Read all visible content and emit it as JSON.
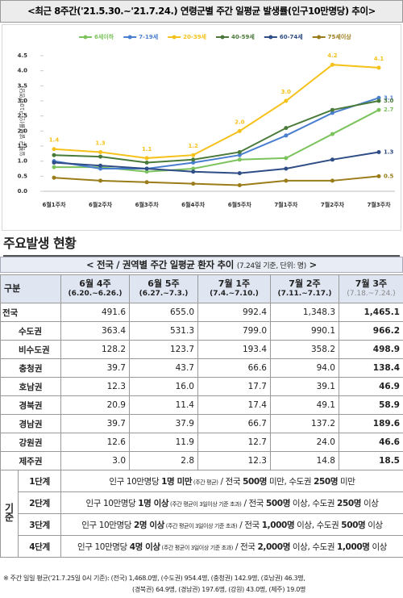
{
  "chart_data": {
    "type": "line",
    "title": "<최근 8주간('21.5.30.~'21.7.24.) 연령군별 주간 일평균 발생률(인구10만명당) 추이>",
    "y_label": "일평균 발생률(인구10만명당)",
    "categories": [
      "6월1주차",
      "6월2주차",
      "6월3주차",
      "6월4주차",
      "6월5주차",
      "7월1주차",
      "7월2주차",
      "7월3주차"
    ],
    "series": [
      {
        "name": "6세이하",
        "color": "#7cc35e",
        "values": [
          0.8,
          0.8,
          0.65,
          0.75,
          1.05,
          1.1,
          1.9,
          2.7
        ],
        "value_labels": [
          null,
          null,
          null,
          null,
          null,
          null,
          null,
          "2.7"
        ]
      },
      {
        "name": "7-19세",
        "color": "#4a7fd0",
        "values": [
          1.0,
          0.75,
          0.75,
          0.95,
          1.2,
          1.85,
          2.6,
          3.1
        ],
        "value_labels": [
          null,
          null,
          null,
          null,
          null,
          null,
          null,
          "3.1"
        ]
      },
      {
        "name": "20-39세",
        "color": "#f5c21b",
        "values": [
          1.4,
          1.3,
          1.1,
          1.2,
          2.0,
          3.0,
          4.2,
          4.1
        ],
        "value_labels": [
          "1.4",
          "1.3",
          "1.1",
          "1.2",
          "2.0",
          "3.0",
          "4.2",
          "4.1"
        ]
      },
      {
        "name": "40-59세",
        "color": "#4a7a3a",
        "values": [
          1.2,
          1.15,
          0.95,
          1.05,
          1.3,
          2.1,
          2.7,
          3.0
        ],
        "value_labels": [
          null,
          null,
          null,
          null,
          null,
          null,
          null,
          "3.0"
        ]
      },
      {
        "name": "60-74세",
        "color": "#2f4d86",
        "values": [
          0.95,
          0.85,
          0.75,
          0.65,
          0.6,
          0.75,
          1.05,
          1.3
        ],
        "value_labels": [
          null,
          null,
          null,
          null,
          null,
          null,
          null,
          "1.3"
        ]
      },
      {
        "name": "75세이상",
        "color": "#9a7c1a",
        "values": [
          0.45,
          0.35,
          0.3,
          0.25,
          0.2,
          0.35,
          0.35,
          0.5
        ],
        "value_labels": [
          null,
          null,
          null,
          null,
          null,
          null,
          null,
          "0.5"
        ]
      }
    ],
    "ylim": [
      0,
      4.5
    ],
    "yticks": [
      {
        "value": 0,
        "label": "0.0"
      },
      0.5,
      {
        "value": 1,
        "label": "1.0"
      },
      1.5,
      {
        "value": 2,
        "label": "2.0"
      },
      2.5,
      {
        "value": 3,
        "label": "3.0"
      },
      3.5,
      {
        "value": 4,
        "label": "4.0"
      },
      4.5
    ],
    "grid": false
  },
  "section": {
    "title": "주요발생 현황"
  },
  "table": {
    "caption": "< 전국 / 권역별 주간 일평균 환자 추이",
    "caption_note": "(7.24일 기준, 단위: 명)",
    "caption_end": ">",
    "header": [
      "구분",
      {
        "week": "6월 4주",
        "dates": "(6.20.~6.26.)"
      },
      {
        "week": "6월 5주",
        "dates": "(6.27.~7.3.)"
      },
      {
        "week": "7월 1주",
        "dates": "(7.4.~7.10.)"
      },
      {
        "week": "7월 2주",
        "dates": "(7.11.~7.17.)"
      },
      {
        "week": "7월 3주",
        "dates": "(7.18.~7.24.)"
      }
    ],
    "rows": [
      [
        "전국",
        "491.6",
        "655.0",
        "992.4",
        "1,348.3",
        "1,465.1"
      ],
      [
        "수도권",
        "363.4",
        "531.3",
        "799.0",
        "990.1",
        "966.2"
      ],
      [
        "비수도권",
        "128.2",
        "123.7",
        "193.4",
        "358.2",
        "498.9"
      ],
      [
        "충청권",
        "39.7",
        "43.7",
        "66.6",
        "94.0",
        "138.4"
      ],
      [
        "호남권",
        "12.3",
        "16.0",
        "17.7",
        "39.1",
        "46.9"
      ],
      [
        "경북권",
        "20.9",
        "11.4",
        "17.4",
        "49.1",
        "58.9"
      ],
      [
        "경남권",
        "39.7",
        "37.9",
        "66.7",
        "137.2",
        "189.6"
      ],
      [
        "강원권",
        "12.6",
        "11.9",
        "12.7",
        "24.0",
        "46.6"
      ],
      [
        "제주권",
        "3.0",
        "2.8",
        "12.3",
        "14.8",
        "18.5"
      ]
    ]
  },
  "criteria": {
    "label": "기준",
    "rows": [
      {
        "stage": "1단계",
        "parts": [
          {
            "text": "인구 10만명당 "
          },
          {
            "text": "1명 미만",
            "style": "bold"
          },
          {
            "text": " (주간 평균)",
            "style": "small"
          },
          {
            "text": " / 전국 "
          },
          {
            "text": "500명",
            "style": "bold"
          },
          {
            "text": " 미만, 수도권 "
          },
          {
            "text": "250명",
            "style": "bold"
          },
          {
            "text": " 미만"
          }
        ]
      },
      {
        "stage": "2단계",
        "parts": [
          {
            "text": "인구 10만명당 "
          },
          {
            "text": "1명 이상",
            "style": "bold"
          },
          {
            "text": " (주간 평균이 3일이상 기준 초과)",
            "style": "small"
          },
          {
            "text": " / 전국 "
          },
          {
            "text": "500명",
            "style": "bold"
          },
          {
            "text": " 이상, 수도권 "
          },
          {
            "text": "250명",
            "style": "bold"
          },
          {
            "text": " 이상"
          }
        ]
      },
      {
        "stage": "3단계",
        "parts": [
          {
            "text": "인구 10만명당 "
          },
          {
            "text": "2명 이상",
            "style": "bold"
          },
          {
            "text": " (주간 평균이 3일이상 기준 초과)",
            "style": "small"
          },
          {
            "text": " / 전국 "
          },
          {
            "text": "1,000명",
            "style": "bold"
          },
          {
            "text": " 이상, 수도권 "
          },
          {
            "text": "500명",
            "style": "bold"
          },
          {
            "text": " 이상"
          }
        ]
      },
      {
        "stage": "4단계",
        "parts": [
          {
            "text": "인구 10만명당 "
          },
          {
            "text": "4명 이상",
            "style": "bold"
          },
          {
            "text": " (주간 평균이 3일이상 기준 초과)",
            "style": "small"
          },
          {
            "text": " / 전국 "
          },
          {
            "text": "2,000명",
            "style": "bold"
          },
          {
            "text": " 이상, 수도권 "
          },
          {
            "text": "1,000명",
            "style": "bold"
          },
          {
            "text": " 이상"
          }
        ]
      }
    ]
  },
  "footnote": [
    "※ 주간 일일 평균('21.7.25일 0시 기준): (전국) 1,468.0명, (수도권) 954.4명, (충청권) 142.9명, (호남권) 46.3명,",
    "(경북권) 64.9명, (경남권) 197.6명, (강원) 43.0명, (제주) 19.0명"
  ]
}
